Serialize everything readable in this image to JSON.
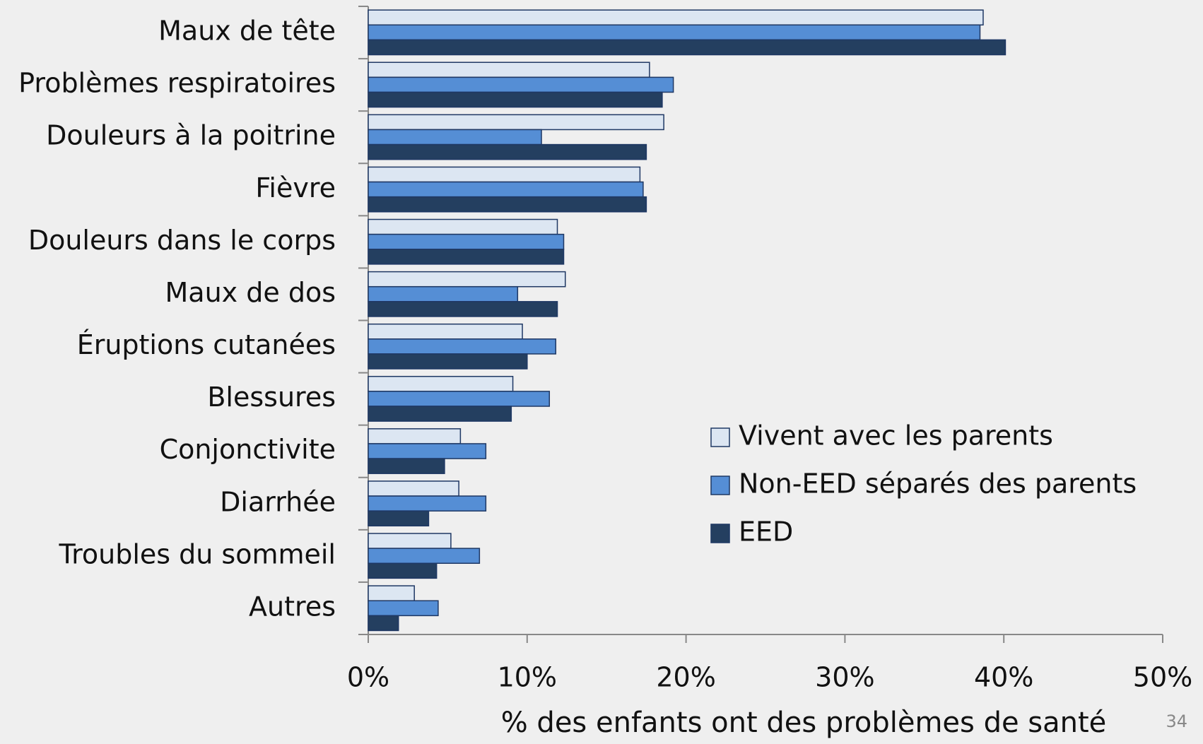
{
  "chart_data": {
    "type": "barh",
    "xlabel": "% des enfants ont des problèmes de santé",
    "categories": [
      "Maux de tête",
      "Problèmes respiratoires",
      "Douleurs à la poitrine",
      "Fièvre",
      "Douleurs dans le corps",
      "Maux de dos",
      "Éruptions cutanées",
      "Blessures",
      "Conjonctivite",
      "Diarrhée",
      "Troubles du sommeil",
      "Autres"
    ],
    "series": [
      {
        "name": "Vivent avec les parents",
        "color": "#dce6f2",
        "values": [
          38.7,
          17.7,
          18.6,
          17.1,
          11.9,
          12.4,
          9.7,
          9.1,
          5.8,
          5.7,
          5.2,
          2.9
        ]
      },
      {
        "name": "Non-EED séparés des parents",
        "color": "#558ed5",
        "values": [
          38.5,
          19.2,
          10.9,
          17.3,
          12.3,
          9.4,
          11.8,
          11.4,
          7.4,
          7.4,
          7.0,
          4.4
        ]
      },
      {
        "name": "EED",
        "color": "#243f60",
        "values": [
          40.1,
          18.5,
          17.5,
          17.5,
          12.3,
          11.9,
          10.0,
          9.0,
          4.8,
          3.8,
          4.3,
          1.9
        ]
      }
    ],
    "xlim": [
      0,
      50
    ],
    "xticks": [
      {
        "value": 0,
        "label": "0%"
      },
      {
        "value": 10,
        "label": "10%"
      },
      {
        "value": 20,
        "label": "20%"
      },
      {
        "value": 30,
        "label": "30%"
      },
      {
        "value": 40,
        "label": "40%"
      },
      {
        "value": 50,
        "label": "50%"
      }
    ],
    "grid": false
  },
  "slide_number": "34"
}
